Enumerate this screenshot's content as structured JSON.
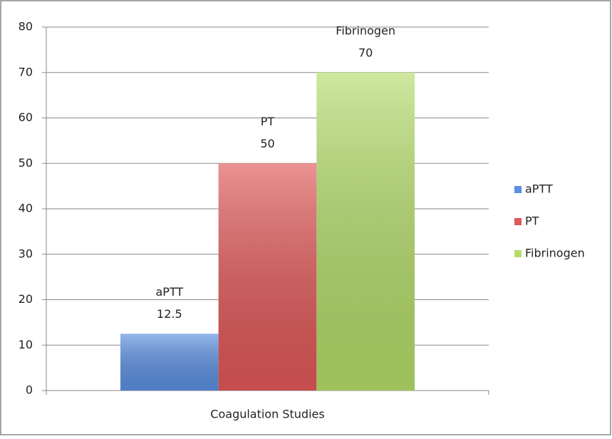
{
  "chart_data": {
    "type": "bar",
    "categories": [
      "Coagulation Studies"
    ],
    "series": [
      {
        "name": "aPTT",
        "color": "#5b8fe0",
        "values": [
          12.5
        ]
      },
      {
        "name": "PT",
        "color": "#e05858",
        "values": [
          50
        ]
      },
      {
        "name": "Fibrinogen",
        "color": "#b4dc6a",
        "values": [
          70
        ]
      }
    ],
    "ylim": [
      0,
      80
    ],
    "yticks": [
      0,
      10,
      20,
      30,
      40,
      50,
      60,
      70,
      80
    ],
    "grid": true,
    "legend": "right"
  }
}
